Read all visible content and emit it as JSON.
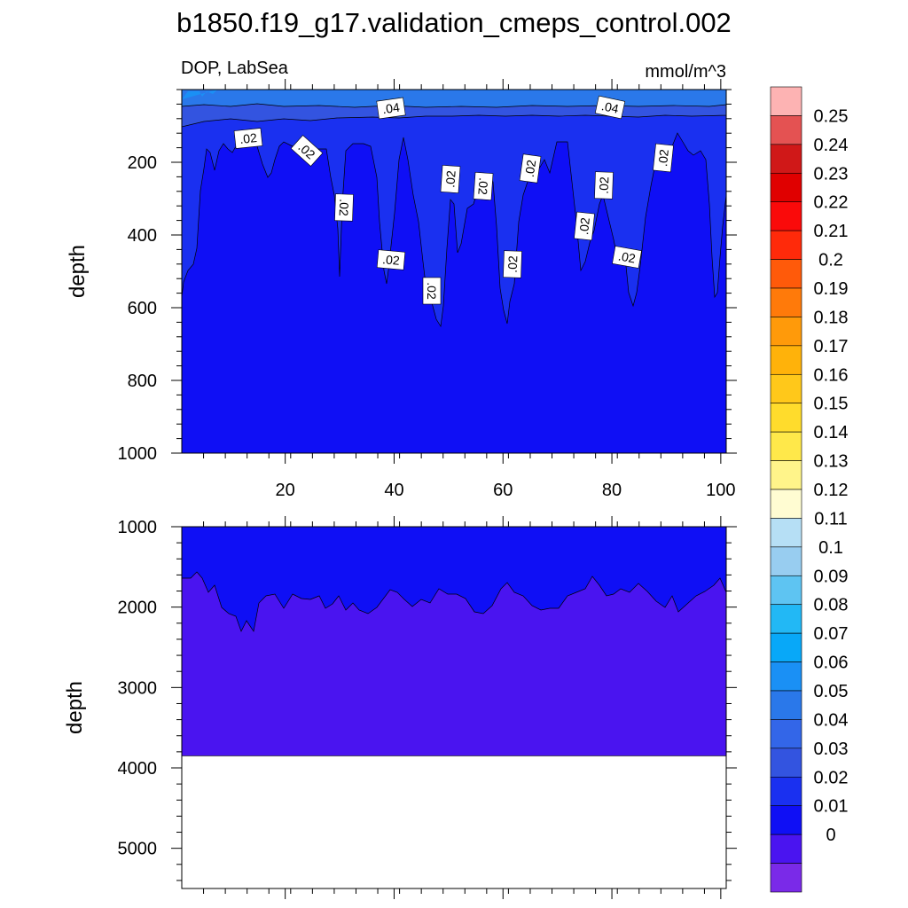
{
  "chart_data": {
    "type": "contour",
    "title": "b1850.f19_g17.validation_cmeps_control.002",
    "left_subtitle": "DOP, LabSea",
    "right_subtitle": "mmol/m^3",
    "ylabel": "depth",
    "x_ticks": [
      "20",
      "40",
      "60",
      "80",
      "100"
    ],
    "x_range": [
      1,
      101
    ],
    "upper_panel": {
      "y_range": [
        0,
        1000
      ],
      "y_ticks": [
        "200",
        "400",
        "600",
        "800",
        "1000"
      ],
      "contour_labels": [
        ".04",
        ".04",
        ".02",
        ".02",
        ".02",
        ".02",
        ".02",
        ".02",
        ".02",
        ".02",
        ".02",
        ".02",
        ".02",
        ".02",
        ".02"
      ]
    },
    "lower_panel": {
      "y_range": [
        1000,
        5500
      ],
      "y_ticks": [
        "1000",
        "2000",
        "3000",
        "4000",
        "5000"
      ],
      "data_bottom_depth": 3850
    },
    "colorbar": {
      "labels": [
        "0.25",
        "0.24",
        "0.23",
        "0.22",
        "0.21",
        "0.2",
        "0.19",
        "0.18",
        "0.17",
        "0.16",
        "0.15",
        "0.14",
        "0.13",
        "0.12",
        "0.11",
        "0.1",
        "0.09",
        "0.08",
        "0.07",
        "0.06",
        "0.05",
        "0.04",
        "0.03",
        "0.02",
        "0.01",
        "0"
      ],
      "colors": [
        "#fdb3b3",
        "#e45252",
        "#d01818",
        "#e00000",
        "#fa0a0a",
        "#ff2a0a",
        "#ff5a0a",
        "#ff7a0a",
        "#ff9a0a",
        "#ffb20a",
        "#ffc81a",
        "#ffdc2c",
        "#ffe84a",
        "#fff48a",
        "#fffcd2",
        "#b6dff5",
        "#98cdf0",
        "#5ec4f2",
        "#22b8f5",
        "#08a8f8",
        "#1a90f5",
        "#2a78ea",
        "#3366e8",
        "#3354e0",
        "#1a30f0",
        "#0f0ff5",
        "#4a14f0",
        "#7a2ae8"
      ]
    },
    "fill_colors": {
      "c0": "#7a2ae8",
      "c001": "#4a14f0",
      "c002": "#0f0ff5",
      "c003": "#1a30f0",
      "c004": "#3354e0",
      "c005": "#2a78ea"
    }
  }
}
